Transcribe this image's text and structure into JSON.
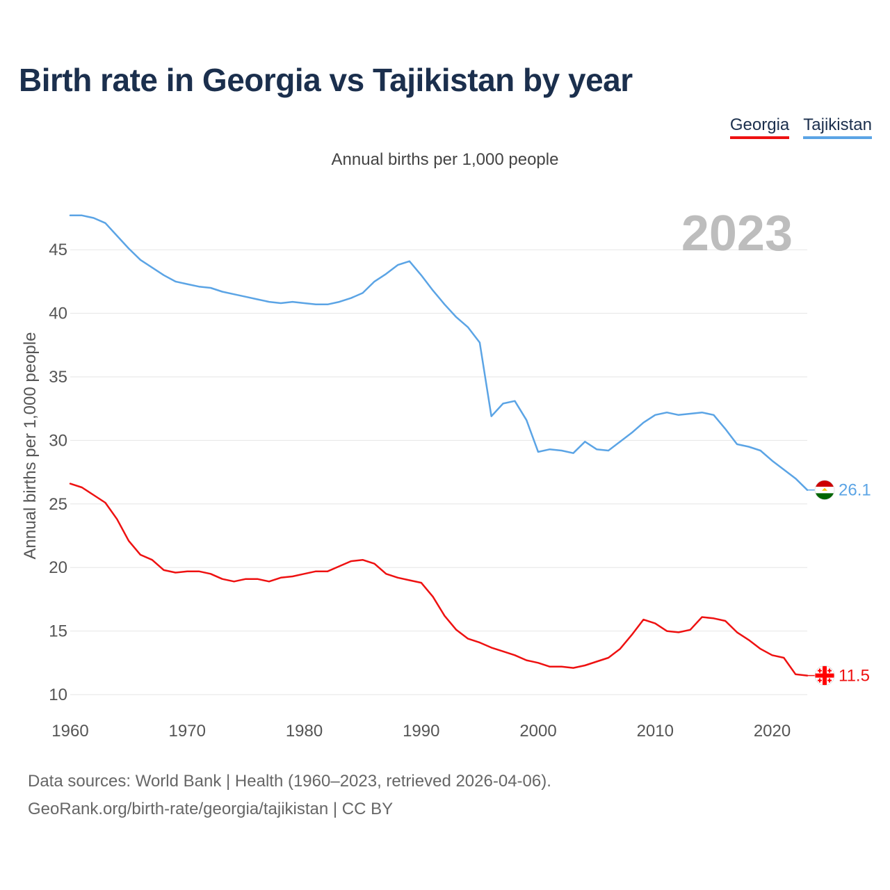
{
  "title": "Birth rate in Georgia vs Tajikistan by year",
  "subtitle": "Annual births per 1,000 people",
  "legend": [
    {
      "label": "Georgia",
      "color": "#ee1111"
    },
    {
      "label": "Tajikistan",
      "color": "#5ba4e5"
    }
  ],
  "footer": {
    "line1": "Data sources: World Bank | Health (1960–2023, retrieved 2026-04-06).",
    "line2": "GeoRank.org/birth-rate/georgia/tajikistan | CC BY"
  },
  "chart_data": {
    "type": "line",
    "title": "Birth rate in Georgia vs Tajikistan by year",
    "ylabel": "Annual births per 1,000 people",
    "xlabel": "",
    "xlim": [
      1960,
      2023
    ],
    "ylim": [
      10,
      47.8
    ],
    "x_ticks": [
      1960,
      1970,
      1980,
      1990,
      2000,
      2010,
      2020
    ],
    "y_ticks": [
      10,
      15,
      20,
      25,
      30,
      35,
      40,
      45
    ],
    "year_watermark": "2023",
    "grid": true,
    "x": [
      1960,
      1961,
      1962,
      1963,
      1964,
      1965,
      1966,
      1967,
      1968,
      1969,
      1970,
      1971,
      1972,
      1973,
      1974,
      1975,
      1976,
      1977,
      1978,
      1979,
      1980,
      1981,
      1982,
      1983,
      1984,
      1985,
      1986,
      1987,
      1988,
      1989,
      1990,
      1991,
      1992,
      1993,
      1994,
      1995,
      1996,
      1997,
      1998,
      1999,
      2000,
      2001,
      2002,
      2003,
      2004,
      2005,
      2006,
      2007,
      2008,
      2009,
      2010,
      2011,
      2012,
      2013,
      2014,
      2015,
      2016,
      2017,
      2018,
      2019,
      2020,
      2021,
      2022,
      2023
    ],
    "series": [
      {
        "name": "Georgia",
        "color": "#ee1111",
        "end_label": "11.5",
        "values": [
          26.6,
          26.3,
          25.7,
          25.1,
          23.8,
          22.1,
          21.0,
          20.6,
          19.8,
          19.6,
          19.7,
          19.7,
          19.5,
          19.1,
          18.9,
          19.1,
          19.1,
          18.9,
          19.2,
          19.3,
          19.5,
          19.7,
          19.7,
          20.1,
          20.5,
          20.6,
          20.3,
          19.5,
          19.2,
          19.0,
          18.8,
          17.7,
          16.2,
          15.1,
          14.4,
          14.1,
          13.7,
          13.4,
          13.1,
          12.7,
          12.5,
          12.2,
          12.2,
          12.1,
          12.3,
          12.6,
          12.9,
          13.6,
          14.7,
          15.9,
          15.6,
          15.0,
          14.9,
          15.1,
          16.1,
          16.0,
          15.8,
          14.9,
          14.3,
          13.6,
          13.1,
          12.9,
          11.6,
          11.5
        ]
      },
      {
        "name": "Tajikistan",
        "color": "#5ba4e5",
        "end_label": "26.1",
        "values": [
          47.7,
          47.7,
          47.5,
          47.1,
          46.1,
          45.1,
          44.2,
          43.6,
          43.0,
          42.5,
          42.3,
          42.1,
          42.0,
          41.7,
          41.5,
          41.3,
          41.1,
          40.9,
          40.8,
          40.9,
          40.8,
          40.7,
          40.7,
          40.9,
          41.2,
          41.6,
          42.5,
          43.1,
          43.8,
          44.1,
          43.0,
          41.8,
          40.7,
          39.7,
          38.9,
          37.7,
          31.9,
          32.9,
          33.1,
          31.6,
          29.1,
          29.3,
          29.2,
          29.0,
          29.9,
          29.3,
          29.2,
          29.9,
          30.6,
          31.4,
          32.0,
          32.2,
          32.0,
          32.1,
          32.2,
          32.0,
          30.9,
          29.7,
          29.5,
          29.2,
          28.4,
          27.7,
          27.0,
          26.1
        ]
      }
    ]
  }
}
